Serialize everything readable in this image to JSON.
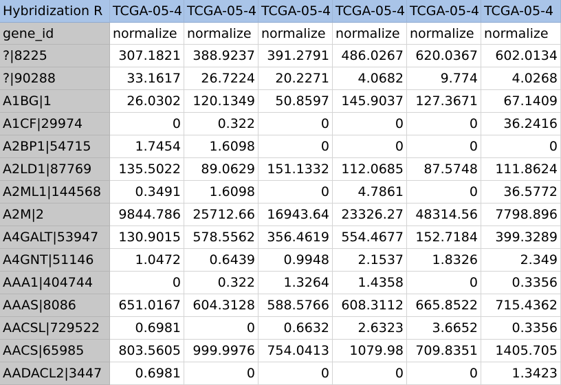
{
  "header_row": [
    "Hybridization R",
    "TCGA-05-4",
    "TCGA-05-4",
    "TCGA-05-4",
    "TCGA-05-4",
    "TCGA-05-4",
    "TCGA-05-4"
  ],
  "subheader_row": [
    "gene_id",
    "normalize",
    "normalize",
    "normalize",
    "normalize",
    "normalize",
    "normalize"
  ],
  "rows": [
    [
      "?|8225",
      "307.1821",
      "388.9237",
      "391.2791",
      "486.0267",
      "620.0367",
      "602.0134"
    ],
    [
      "?|90288",
      "33.1617",
      "26.7224",
      "20.2271",
      "4.0682",
      "9.774",
      "4.0268"
    ],
    [
      "A1BG|1",
      "26.0302",
      "120.1349",
      "50.8597",
      "145.9037",
      "127.3671",
      "67.1409"
    ],
    [
      "A1CF|29974",
      "0",
      "0.322",
      "0",
      "0",
      "0",
      "36.2416"
    ],
    [
      "A2BP1|54715",
      "1.7454",
      "1.6098",
      "0",
      "0",
      "0",
      "0"
    ],
    [
      "A2LD1|87769",
      "135.5022",
      "89.0629",
      "151.1332",
      "112.0685",
      "87.5748",
      "111.8624"
    ],
    [
      "A2ML1|144568",
      "0.3491",
      "1.6098",
      "0",
      "4.7861",
      "0",
      "36.5772"
    ],
    [
      "A2M|2",
      "9844.786",
      "25712.66",
      "16943.64",
      "23326.27",
      "48314.56",
      "7798.896"
    ],
    [
      "A4GALT|53947",
      "130.9015",
      "578.5562",
      "356.4619",
      "554.4677",
      "152.7184",
      "399.3289"
    ],
    [
      "A4GNT|51146",
      "1.0472",
      "0.6439",
      "0.9948",
      "2.1537",
      "1.8326",
      "2.349"
    ],
    [
      "AAA1|404744",
      "0",
      "0.322",
      "1.3264",
      "1.4358",
      "0",
      "0.3356"
    ],
    [
      "AAAS|8086",
      "651.0167",
      "604.3128",
      "588.5766",
      "608.3112",
      "665.8522",
      "715.4362"
    ],
    [
      "AACSL|729522",
      "0.6981",
      "0",
      "0.6632",
      "2.6323",
      "3.6652",
      "0.3356"
    ],
    [
      "AACS|65985",
      "803.5605",
      "999.9976",
      "754.0413",
      "1079.98",
      "709.8351",
      "1405.705"
    ],
    [
      "AADACL2|3447",
      "0.6981",
      "0",
      "0",
      "0",
      "0",
      "1.3423"
    ]
  ]
}
